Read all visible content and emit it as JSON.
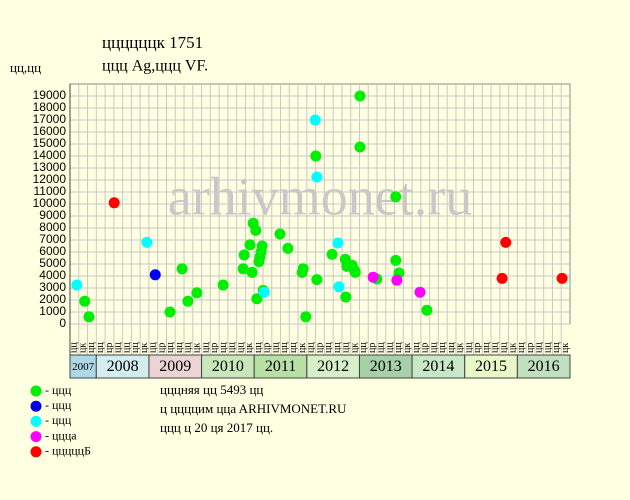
{
  "chart_data": {
    "type": "scatter",
    "title": "ццццццк 1751",
    "subtitle": "ццц Ag,ццц VF.",
    "y_label": "цц,цц",
    "watermark": "arhivmonet.ru",
    "xlim": [
      2007.5,
      2017
    ],
    "ylim": [
      0,
      20000
    ],
    "yticks": [
      0,
      1000,
      2000,
      3000,
      4000,
      5000,
      6000,
      7000,
      8000,
      9000,
      10000,
      11000,
      12000,
      13000,
      14000,
      15000,
      16000,
      17000,
      18000,
      19000
    ],
    "xticks": [
      {
        "value": 2007.5,
        "label": "2007"
      },
      {
        "value": 2008,
        "label": "2008"
      },
      {
        "value": 2009,
        "label": "2009"
      },
      {
        "value": 2010,
        "label": "2010"
      },
      {
        "value": 2011,
        "label": "2011"
      },
      {
        "value": 2012,
        "label": "2012"
      },
      {
        "value": 2013,
        "label": "2013"
      },
      {
        "value": 2014,
        "label": "2014"
      },
      {
        "value": 2015,
        "label": "2015"
      },
      {
        "value": 2016,
        "label": "2016"
      }
    ],
    "band_colors": [
      "#add8e6",
      "#d4eef0",
      "#ecd4d4",
      "#c8e8bc",
      "#b8e0a4",
      "#d8f0c8",
      "#a8d0a8",
      "#c8e8c8",
      "#eaf8c8",
      "#c0e0c0"
    ],
    "column_labels": [
      "цц",
      "цк",
      "цц",
      "цц",
      "цр",
      "цц",
      "цц",
      "цц",
      "цк",
      "цц",
      "цр",
      "цц",
      "цц",
      "цц",
      "цк",
      "цц",
      "цр",
      "цц",
      "цц",
      "цц",
      "цк",
      "цц",
      "цр",
      "цц",
      "цц",
      "цц",
      "цк",
      "цц",
      "цр",
      "цц",
      "цц",
      "цц",
      "цк",
      "цц",
      "цр",
      "цц",
      "цц",
      "цц",
      "цк",
      "цц",
      "цр",
      "цц",
      "цц",
      "цц",
      "цк",
      "цц",
      "цр",
      "цц",
      "цц",
      "цц",
      "цк",
      "цц",
      "цр",
      "цц",
      "цц",
      "цц",
      "цк"
    ],
    "grid": true,
    "series": [
      {
        "name": "- ццц",
        "color": "#00ee00",
        "x": [
          2007.78,
          2007.86,
          2009.4,
          2009.63,
          2009.74,
          2009.91,
          2010.41,
          2010.79,
          2010.81,
          2010.92,
          2010.96,
          2010.98,
          2011.03,
          2011.05,
          2011.09,
          2011.11,
          2011.13,
          2011.15,
          2011.17,
          2011.49,
          2011.64,
          2011.91,
          2011.93,
          2011.98,
          2012.17,
          2012.19,
          2012.48,
          2012.73,
          2012.74,
          2012.76,
          2012.86,
          2012.9,
          2012.92,
          2013.01,
          2013.01,
          2013.33,
          2013.69,
          2013.69,
          2013.75,
          2014.28
        ],
        "values": [
          1900,
          600,
          1000,
          4600,
          1900,
          2600,
          3250,
          4600,
          5750,
          6600,
          4300,
          8400,
          7800,
          2100,
          5200,
          5600,
          6000,
          6500,
          2800,
          7500,
          6300,
          4300,
          4600,
          600,
          14000,
          3700,
          5800,
          5400,
          2250,
          4800,
          4900,
          4500,
          4300,
          19000,
          14750,
          3750,
          10600,
          5300,
          4250,
          1150
        ]
      },
      {
        "name": "- ццц",
        "color": "#0000ee",
        "x": [
          2009.12
        ],
        "values": [
          4100
        ]
      },
      {
        "name": "- ццц",
        "color": "#00ffff",
        "x": [
          2007.63,
          2008.96,
          2011.19,
          2012.16,
          2012.19,
          2012.59,
          2012.61
        ],
        "values": [
          3250,
          6800,
          2650,
          17000,
          12250,
          6750,
          3100
        ]
      },
      {
        "name": "- ццца",
        "color": "#ff00ff",
        "x": [
          2013.26,
          2013.71,
          2014.15
        ],
        "values": [
          3900,
          3650,
          2650
        ]
      },
      {
        "name": "- цццццБ",
        "color": "#ff0000",
        "x": [
          2008.34,
          2015.71,
          2015.78,
          2016.85
        ],
        "values": [
          10100,
          3800,
          6800,
          3800
        ]
      }
    ],
    "notes": [
      "цццняя цц 5493 цц",
      "ц ццццим ццa ARHIVMONET.RU",
      "ццц ц 20 ця 2017 цц."
    ]
  }
}
